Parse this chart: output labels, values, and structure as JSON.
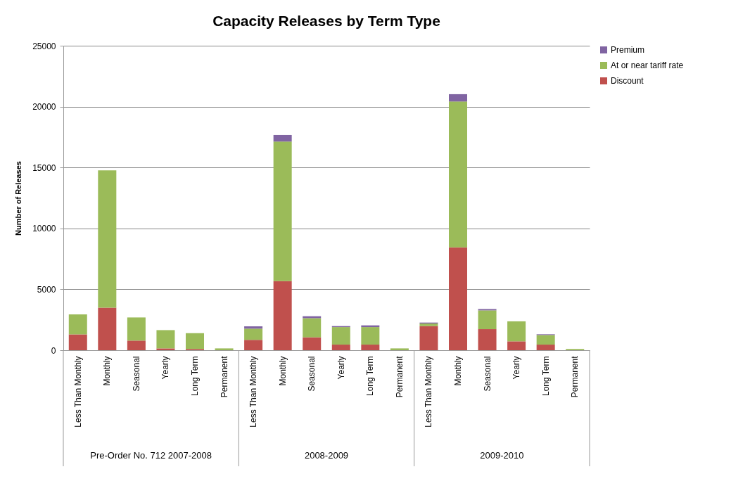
{
  "chart_data": {
    "type": "bar",
    "title": "Capacity Releases by Term Type",
    "ylabel": "Number of Releases",
    "categories": [
      "Less Than Monthly",
      "Monthly",
      "Seasonal",
      "Yearly",
      "Long Term",
      "Permanent",
      "Less Than Monthly",
      "Monthly",
      "Seasonal",
      "Yearly",
      "Long Term",
      "Permanent",
      "Less Than Monthly",
      "Monthly",
      "Seasonal",
      "Yearly",
      "Long Term",
      "Permanent"
    ],
    "annotations": [
      "Pre-Order No. 712 2007-2008",
      "2008-2009",
      "2009-2010"
    ],
    "stacked": true,
    "ylim": [
      0,
      25000
    ],
    "yticks": [
      0,
      5000,
      10000,
      15000,
      20000,
      25000
    ],
    "grid": "y",
    "legend": "right",
    "series": [
      {
        "name": "Discount",
        "color": "#c0504d",
        "values": [
          1300,
          3500,
          790,
          150,
          100,
          0,
          850,
          5670,
          1060,
          460,
          460,
          0,
          1980,
          8440,
          1730,
          730,
          460,
          0
        ]
      },
      {
        "name": "At or near tariff rate",
        "color": "#9bbb59",
        "values": [
          1640,
          11270,
          1900,
          1500,
          1300,
          150,
          920,
          11460,
          1570,
          1440,
          1440,
          150,
          210,
          11980,
          1540,
          1640,
          790,
          100
        ]
      },
      {
        "name": "Premium",
        "color": "#8064a2",
        "values": [
          0,
          0,
          0,
          0,
          0,
          0,
          190,
          540,
          160,
          80,
          140,
          0,
          80,
          600,
          110,
          0,
          60,
          0
        ]
      }
    ]
  }
}
